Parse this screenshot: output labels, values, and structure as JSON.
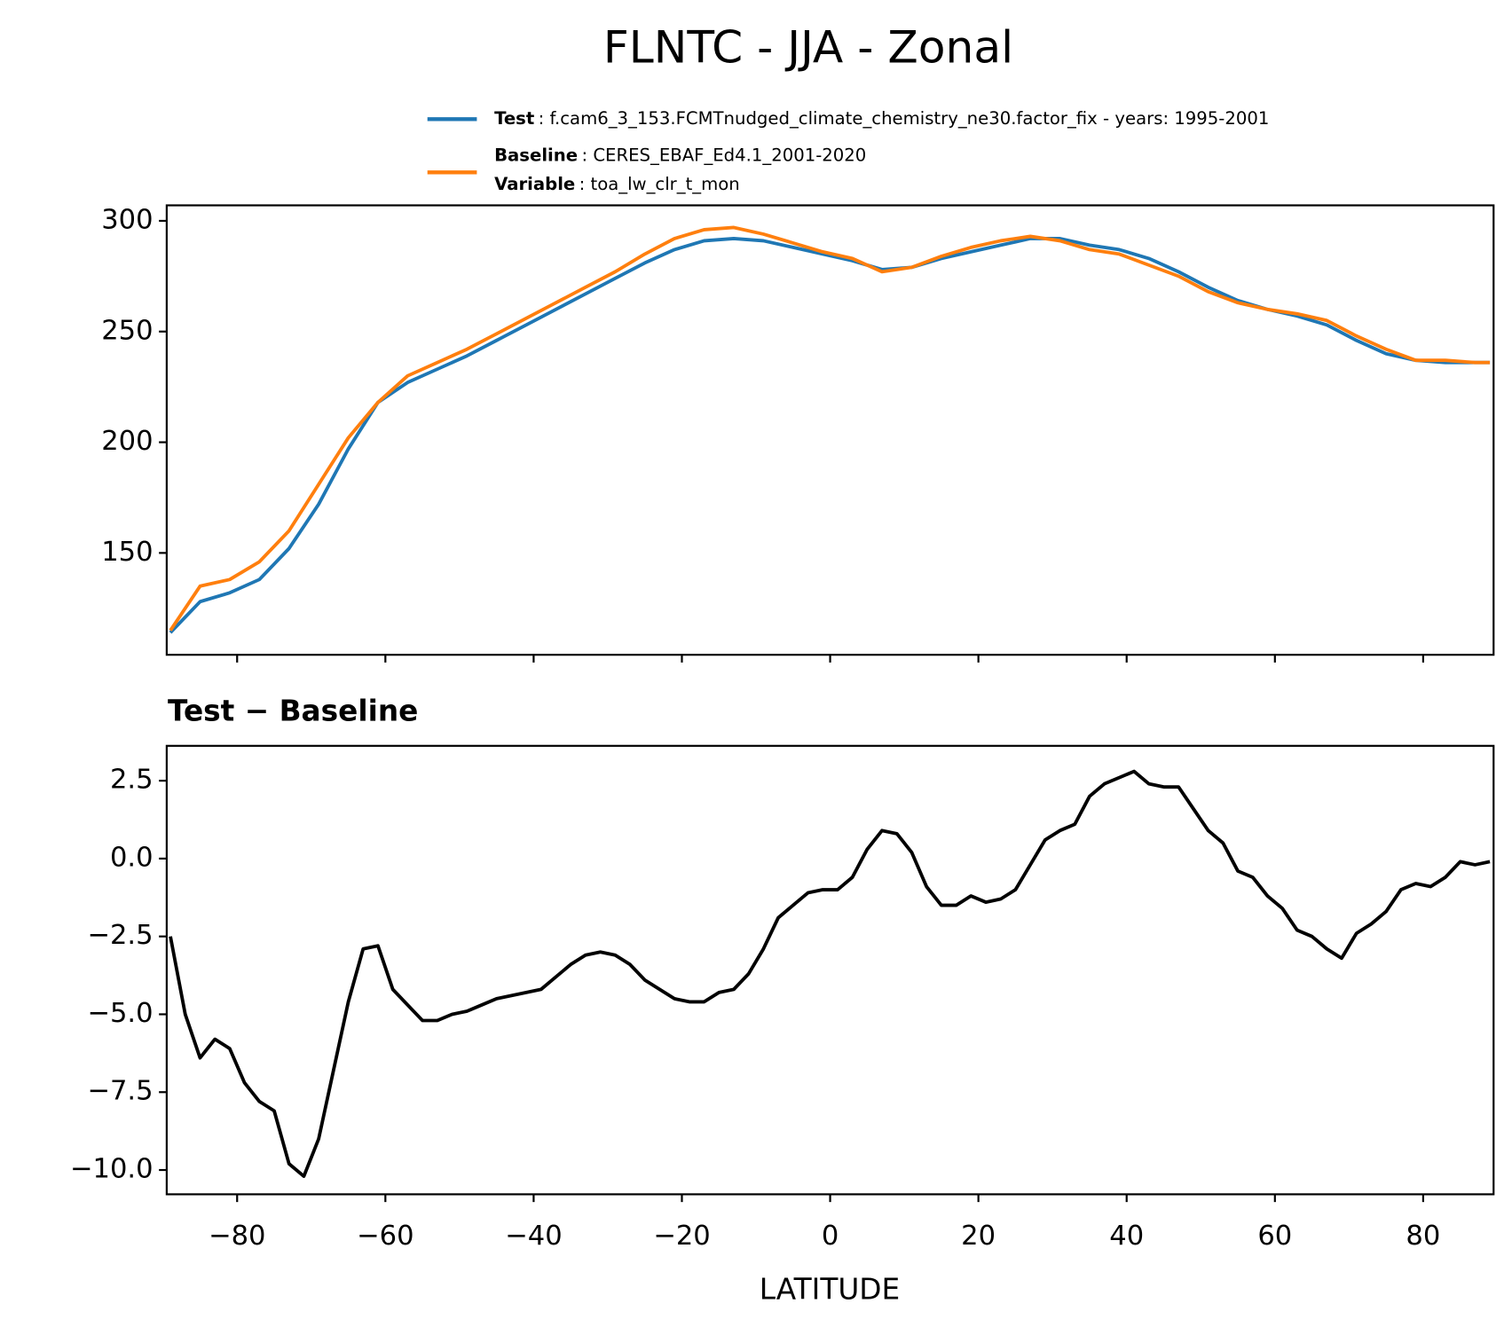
{
  "chart_data": [
    {
      "type": "line",
      "title": "FLNTC - JJA - Zonal",
      "x": [
        -89,
        -85,
        -81,
        -77,
        -73,
        -69,
        -65,
        -61,
        -57,
        -53,
        -49,
        -45,
        -41,
        -37,
        -33,
        -29,
        -25,
        -21,
        -17,
        -13,
        -9,
        -5,
        -1,
        3,
        7,
        11,
        15,
        19,
        23,
        27,
        31,
        35,
        39,
        43,
        47,
        51,
        55,
        59,
        63,
        67,
        71,
        75,
        79,
        83,
        87,
        89
      ],
      "series": [
        {
          "name": "Test",
          "description": ": f.cam6_3_153.FCMTnudged_climate_chemistry_ne30.factor_fix - years: 1995-2001",
          "color": "#1f77b4",
          "values": [
            114,
            128,
            132,
            138,
            152,
            172,
            197,
            218,
            227,
            233,
            239,
            246,
            253,
            260,
            267,
            274,
            281,
            287,
            291,
            292,
            291,
            288,
            285,
            282,
            278,
            279,
            283,
            286,
            289,
            292,
            292,
            289,
            287,
            283,
            277,
            270,
            264,
            260,
            257,
            253,
            246,
            240,
            237,
            236,
            236,
            236
          ]
        },
        {
          "name": "Baseline",
          "description": ": CERES_EBAF_Ed4.1_2001-2020",
          "color": "#ff7f0e",
          "values": [
            115,
            135,
            138,
            146,
            160,
            181,
            202,
            218,
            230,
            236,
            242,
            249,
            256,
            263,
            270,
            277,
            285,
            292,
            296,
            297,
            294,
            290,
            286,
            283,
            277,
            279,
            284,
            288,
            291,
            293,
            291,
            287,
            285,
            280,
            275,
            268,
            263,
            260,
            258,
            255,
            248,
            242,
            237,
            237,
            236,
            236
          ]
        }
      ],
      "legend_extra": {
        "name": "Variable",
        "description": ": toa_lw_clr_t_mon"
      },
      "xlim": [
        -89.5,
        89.5
      ],
      "xticks": [
        -80,
        -60,
        -40,
        -20,
        0,
        20,
        40,
        60,
        80
      ],
      "ylim": [
        104,
        307
      ],
      "yticks": [
        150,
        200,
        250,
        300
      ]
    },
    {
      "type": "line",
      "title": "Test − Baseline",
      "xlabel": "LATITUDE",
      "x": [
        -89,
        -87,
        -85,
        -83,
        -81,
        -79,
        -77,
        -75,
        -73,
        -71,
        -69,
        -67,
        -65,
        -63,
        -61,
        -59,
        -57,
        -55,
        -53,
        -51,
        -49,
        -47,
        -45,
        -43,
        -41,
        -39,
        -37,
        -35,
        -33,
        -31,
        -29,
        -27,
        -25,
        -23,
        -21,
        -19,
        -17,
        -15,
        -13,
        -11,
        -9,
        -7,
        -5,
        -3,
        -1,
        1,
        3,
        5,
        7,
        9,
        11,
        13,
        15,
        17,
        19,
        21,
        23,
        25,
        27,
        29,
        31,
        33,
        35,
        37,
        39,
        41,
        43,
        45,
        47,
        49,
        51,
        53,
        55,
        57,
        59,
        61,
        63,
        65,
        67,
        69,
        71,
        73,
        75,
        77,
        79,
        81,
        83,
        85,
        87,
        89
      ],
      "series": [
        {
          "color": "#000000",
          "values": [
            -2.5,
            -5.0,
            -6.4,
            -5.8,
            -6.1,
            -7.2,
            -7.8,
            -8.1,
            -9.8,
            -10.2,
            -9.0,
            -6.8,
            -4.6,
            -2.9,
            -2.8,
            -4.2,
            -4.7,
            -5.2,
            -5.2,
            -5.0,
            -4.9,
            -4.7,
            -4.5,
            -4.4,
            -4.3,
            -4.2,
            -3.8,
            -3.4,
            -3.1,
            -3.0,
            -3.1,
            -3.4,
            -3.9,
            -4.2,
            -4.5,
            -4.6,
            -4.6,
            -4.3,
            -4.2,
            -3.7,
            -2.9,
            -1.9,
            -1.5,
            -1.1,
            -1.0,
            -1.0,
            -0.6,
            0.3,
            0.9,
            0.8,
            0.2,
            -0.9,
            -1.5,
            -1.5,
            -1.2,
            -1.4,
            -1.3,
            -1.0,
            -0.2,
            0.6,
            0.9,
            1.1,
            2.0,
            2.4,
            2.6,
            2.8,
            2.4,
            2.3,
            2.3,
            1.6,
            0.9,
            0.5,
            -0.4,
            -0.6,
            -1.2,
            -1.6,
            -2.3,
            -2.5,
            -2.9,
            -3.2,
            -2.4,
            -2.1,
            -1.7,
            -1.0,
            -0.8,
            -0.9,
            -0.6,
            -0.1,
            -0.2,
            -0.1
          ]
        }
      ],
      "xlim": [
        -89.5,
        89.5
      ],
      "xticks": [
        {
          "value": -80,
          "label": "−80"
        },
        {
          "value": -60,
          "label": "−60"
        },
        {
          "value": -40,
          "label": "−40"
        },
        {
          "value": -20,
          "label": "−20"
        },
        0,
        20,
        40,
        60,
        80
      ],
      "ylim": [
        -10.78,
        3.62
      ],
      "yticks": [
        2.5,
        {
          "value": 0,
          "label": "0.0"
        },
        {
          "value": -2.5,
          "label": "−2.5"
        },
        {
          "value": -5,
          "label": "−5.0"
        },
        {
          "value": -7.5,
          "label": "−7.5"
        },
        {
          "value": -10,
          "label": "−10.0"
        }
      ]
    }
  ]
}
